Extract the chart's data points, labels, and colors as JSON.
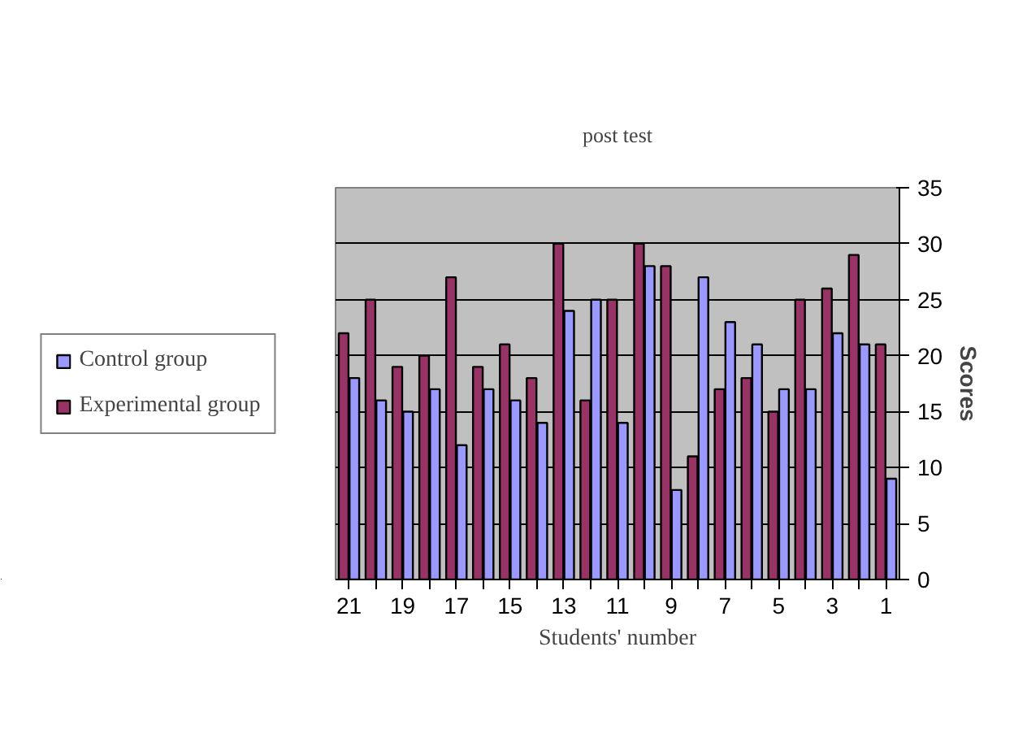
{
  "chart_data": {
    "type": "bar",
    "title": "post test",
    "xlabel": "Students' number",
    "ylabel": "Scores",
    "categories": [
      "21",
      null,
      "19",
      null,
      "17",
      null,
      "15",
      null,
      "13",
      null,
      "11",
      null,
      "9",
      null,
      "7",
      null,
      "5",
      null,
      "3",
      null,
      "1"
    ],
    "series": [
      {
        "name": "Experimental group",
        "color": "#993366",
        "values": [
          22,
          25,
          19,
          20,
          27,
          19,
          21,
          18,
          30,
          16,
          25,
          30,
          28,
          11,
          17,
          18,
          15,
          25,
          26,
          29,
          21
        ]
      },
      {
        "name": "Control group",
        "color": "#9999ff",
        "values": [
          18,
          16,
          15,
          17,
          12,
          17,
          16,
          14,
          24,
          25,
          14,
          28,
          8,
          27,
          23,
          21,
          17,
          17,
          22,
          21,
          9
        ]
      }
    ],
    "ylim": [
      0,
      35
    ],
    "yticks": [
      0,
      5,
      10,
      15,
      20,
      25,
      30,
      35
    ],
    "grid": "y",
    "legend": "left"
  }
}
